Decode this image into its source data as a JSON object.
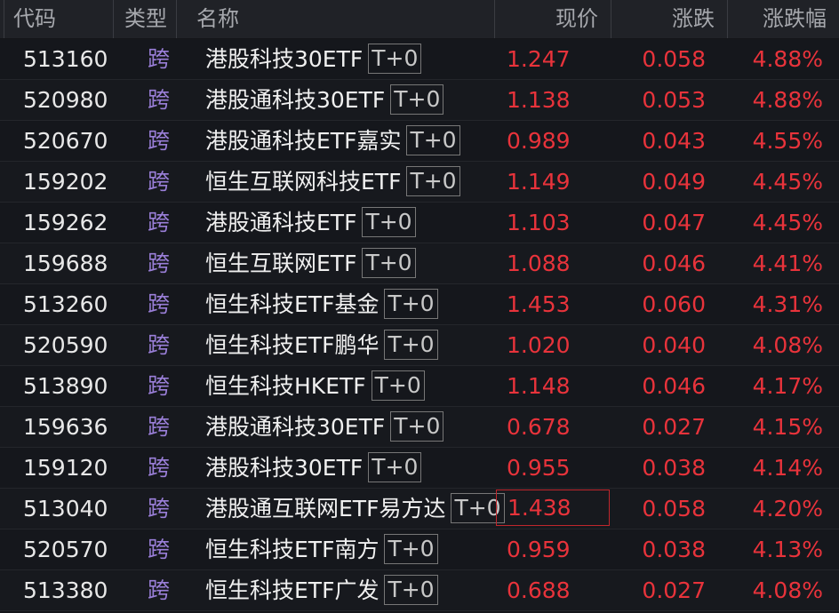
{
  "header": {
    "code": "代码",
    "type": "类型",
    "name": "名称",
    "price": "现价",
    "change": "涨跌",
    "pct": "涨跌幅"
  },
  "colors": {
    "up": "#e8333b",
    "type": "#9a7fd8",
    "selection": "#c0262c"
  },
  "rows": [
    {
      "code": "513160",
      "type": "跨",
      "name": "港股科技30ETF",
      "tag": "T+0",
      "price": "1.247",
      "change": "0.058",
      "pct": "4.88%"
    },
    {
      "code": "520980",
      "type": "跨",
      "name": "港股通科技30ETF",
      "tag": "T+0",
      "price": "1.138",
      "change": "0.053",
      "pct": "4.88%"
    },
    {
      "code": "520670",
      "type": "跨",
      "name": "港股通科技ETF嘉实",
      "tag": "T+0",
      "price": "0.989",
      "change": "0.043",
      "pct": "4.55%"
    },
    {
      "code": "159202",
      "type": "跨",
      "name": "恒生互联网科技ETF",
      "tag": "T+0",
      "price": "1.149",
      "change": "0.049",
      "pct": "4.45%"
    },
    {
      "code": "159262",
      "type": "跨",
      "name": "港股通科技ETF",
      "tag": "T+0",
      "price": "1.103",
      "change": "0.047",
      "pct": "4.45%"
    },
    {
      "code": "159688",
      "type": "跨",
      "name": "恒生互联网ETF",
      "tag": "T+0",
      "price": "1.088",
      "change": "0.046",
      "pct": "4.41%"
    },
    {
      "code": "513260",
      "type": "跨",
      "name": "恒生科技ETF基金",
      "tag": "T+0",
      "price": "1.453",
      "change": "0.060",
      "pct": "4.31%"
    },
    {
      "code": "520590",
      "type": "跨",
      "name": "恒生科技ETF鹏华",
      "tag": "T+0",
      "price": "1.020",
      "change": "0.040",
      "pct": "4.08%"
    },
    {
      "code": "513890",
      "type": "跨",
      "name": "恒生科技HKETF",
      "tag": "T+0",
      "price": "1.148",
      "change": "0.046",
      "pct": "4.17%"
    },
    {
      "code": "159636",
      "type": "跨",
      "name": "港股通科技30ETF",
      "tag": "T+0",
      "price": "0.678",
      "change": "0.027",
      "pct": "4.15%"
    },
    {
      "code": "159120",
      "type": "跨",
      "name": "港股科技30ETF",
      "tag": "T+0",
      "price": "0.955",
      "change": "0.038",
      "pct": "4.14%"
    },
    {
      "code": "513040",
      "type": "跨",
      "name": "港股通互联网ETF易方达",
      "tag": "T+0",
      "price": "1.438",
      "change": "0.058",
      "pct": "4.20%",
      "selected": true
    },
    {
      "code": "520570",
      "type": "跨",
      "name": "恒生科技ETF南方",
      "tag": "T+0",
      "price": "0.959",
      "change": "0.038",
      "pct": "4.13%"
    },
    {
      "code": "513380",
      "type": "跨",
      "name": "恒生科技ETF广发",
      "tag": "T+0",
      "price": "0.688",
      "change": "0.027",
      "pct": "4.08%"
    }
  ]
}
